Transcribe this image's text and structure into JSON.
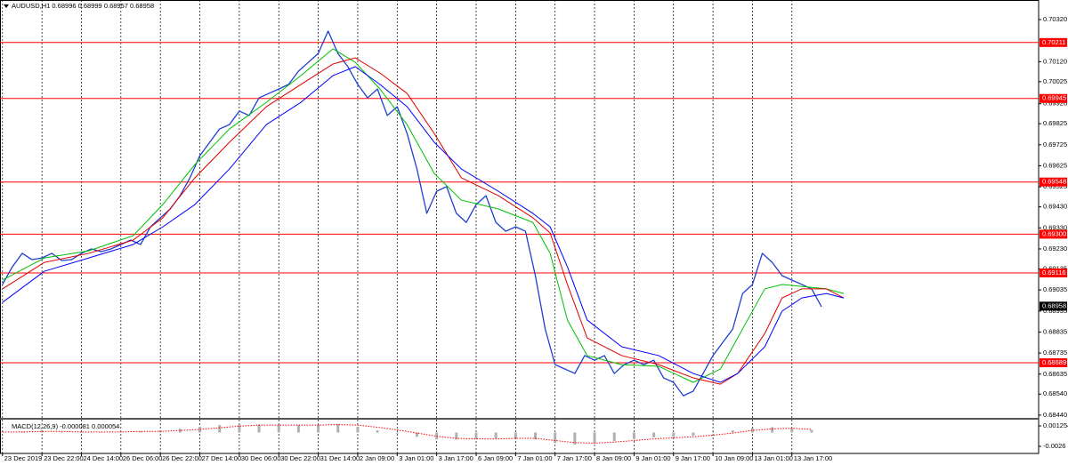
{
  "chart_data": [
    {
      "type": "line",
      "title": "AUDUSD,H1  0.68996 0.68999 0.68957 0.68958",
      "xlim": [
        -1,
        420
      ],
      "ylim": [
        0.68427,
        0.70413
      ],
      "grid_x": true,
      "xticks": [
        {
          "value": 0,
          "label": "23 Dec 2019"
        },
        {
          "value": 16,
          "label": "23 Dec 22:00"
        },
        {
          "value": 32,
          "label": "24 Dec 14:00"
        },
        {
          "value": 48,
          "label": "26 Dec 06:00"
        },
        {
          "value": 64,
          "label": "26 Dec 22:00"
        },
        {
          "value": 80,
          "label": "27 Dec 14:00"
        },
        {
          "value": 96,
          "label": "30 Dec 06:00"
        },
        {
          "value": 112,
          "label": "30 Dec 22:00"
        },
        {
          "value": 128,
          "label": "31 Dec 14:00"
        },
        {
          "value": 144,
          "label": "2 Jan 09:00"
        },
        {
          "value": 160,
          "label": "3 Jan 01:00"
        },
        {
          "value": 176,
          "label": "3 Jan 17:00"
        },
        {
          "value": 192,
          "label": "6 Jan 09:00"
        },
        {
          "value": 208,
          "label": "7 Jan 01:00"
        },
        {
          "value": 224,
          "label": "7 Jan 17:00"
        },
        {
          "value": 240,
          "label": "8 Jan 09:00"
        },
        {
          "value": 256,
          "label": "9 Jan 01:00"
        },
        {
          "value": 272,
          "label": "9 Jan 17:00"
        },
        {
          "value": 288,
          "label": "10 Jan 09:00"
        },
        {
          "value": 304,
          "label": "13 Jan 01:00"
        },
        {
          "value": 320,
          "label": "13 Jan 17:00"
        }
      ],
      "yticks": [
        {
          "value": 0.7032,
          "label": "0.70320"
        },
        {
          "value": 0.7012,
          "label": "0.70120"
        },
        0.70025,
        {
          "value": 0.6992,
          "label": "0.69920"
        },
        0.69825,
        0.69725,
        0.69625,
        0.69525,
        {
          "value": 0.6943,
          "label": "0.69430"
        },
        {
          "value": 0.6933,
          "label": "0.69330"
        },
        {
          "value": 0.6923,
          "label": "0.69230"
        },
        0.69135,
        0.69035,
        0.68935,
        0.68835,
        0.68735,
        0.68635,
        {
          "value": 0.6854,
          "label": "0.68540"
        },
        {
          "value": 0.6844,
          "label": "0.68440"
        }
      ],
      "levels": [
        0.70211,
        0.69945,
        0.69548,
        {
          "value": 0.693,
          "label": "0.69300"
        },
        0.69116,
        0.68689
      ],
      "level_color": "#ff0000",
      "last_price": 0.68958,
      "series": [
        {
          "color": "#1f3fd0",
          "x": [
            0,
            4,
            8,
            12,
            16,
            20,
            24,
            28,
            32,
            36,
            40,
            44,
            48,
            52,
            56,
            60,
            64,
            68,
            72,
            76,
            80,
            84,
            88,
            92,
            96,
            100,
            104,
            108,
            112,
            116,
            120,
            124,
            128,
            132,
            136,
            140,
            144,
            148,
            152,
            156,
            160,
            164,
            168,
            172,
            176,
            180,
            184,
            188,
            192,
            196,
            200,
            204,
            208,
            212,
            216,
            220,
            224,
            228,
            232,
            236,
            240,
            244,
            248,
            252,
            256,
            260,
            264,
            268,
            272,
            276,
            280,
            284,
            288,
            292,
            296,
            300,
            304,
            308,
            312,
            316,
            320,
            324,
            328,
            332
          ],
          "values": [
            0.69061,
            0.69145,
            0.69209,
            0.69179,
            0.69187,
            0.69209,
            0.69175,
            0.69179,
            0.69209,
            0.6923,
            0.69217,
            0.6923,
            0.69251,
            0.69272,
            0.69251,
            0.69335,
            0.69378,
            0.6942,
            0.69483,
            0.69568,
            0.69673,
            0.69737,
            0.698,
            0.69821,
            0.69885,
            0.69864,
            0.69948,
            0.69969,
            0.6999,
            0.70012,
            0.70075,
            0.70117,
            0.70159,
            0.70265,
            0.70159,
            0.70096,
            0.70012,
            0.69948,
            0.6999,
            0.69864,
            0.69906,
            0.69779,
            0.6961,
            0.69399,
            0.69504,
            0.69526,
            0.69399,
            0.69356,
            0.69441,
            0.69483,
            0.69356,
            0.69314,
            0.69335,
            0.69314,
            0.69103,
            0.68849,
            0.6868,
            0.68659,
            0.68638,
            0.68723,
            0.68701,
            0.68723,
            0.68638,
            0.6868,
            0.68701,
            0.6868,
            0.68701,
            0.68617,
            0.68596,
            0.68532,
            0.68554,
            0.68638,
            0.68723,
            0.68786,
            0.68849,
            0.69018,
            0.69061,
            0.69209,
            0.69166,
            0.69103,
            0.69082,
            0.69061,
            0.6904,
            0.68955
          ]
        },
        {
          "color": "#00c000",
          "x": [
            0,
            17,
            35,
            53,
            65,
            78,
            92,
            107,
            121,
            134,
            143,
            153,
            164,
            175,
            186,
            201,
            215,
            222,
            229,
            237,
            251,
            266,
            280,
            291,
            298,
            309,
            316,
            324,
            334,
            341
          ],
          "values": [
            0.69082,
            0.69187,
            0.69221,
            0.69293,
            0.69441,
            0.69631,
            0.698,
            0.69927,
            0.70054,
            0.70181,
            0.70117,
            0.6999,
            0.69821,
            0.69589,
            0.69462,
            0.6942,
            0.69356,
            0.69209,
            0.68892,
            0.68723,
            0.6868,
            0.68672,
            0.68596,
            0.68659,
            0.68807,
            0.6904,
            0.69061,
            0.69052,
            0.6904,
            0.69018
          ]
        },
        {
          "color": "#e00000",
          "x": [
            0,
            17,
            35,
            53,
            65,
            78,
            92,
            107,
            121,
            134,
            143,
            153,
            164,
            175,
            186,
            201,
            215,
            222,
            229,
            237,
            251,
            266,
            280,
            291,
            298,
            309,
            316,
            324,
            334,
            341
          ],
          "values": [
            0.6904,
            0.69166,
            0.69209,
            0.69272,
            0.69378,
            0.69568,
            0.69737,
            0.69906,
            0.70012,
            0.70109,
            0.70138,
            0.70066,
            0.69969,
            0.69779,
            0.69568,
            0.69483,
            0.69378,
            0.69306,
            0.69061,
            0.68807,
            0.68723,
            0.6868,
            0.68617,
            0.68587,
            0.68638,
            0.68828,
            0.68997,
            0.6904,
            0.6904,
            0.68997
          ]
        },
        {
          "color": "#0000ff",
          "x": [
            0,
            17,
            35,
            53,
            65,
            78,
            92,
            107,
            121,
            134,
            143,
            153,
            164,
            175,
            186,
            201,
            215,
            222,
            229,
            237,
            251,
            266,
            280,
            291,
            298,
            309,
            316,
            324,
            334,
            341
          ],
          "values": [
            0.68976,
            0.69124,
            0.69187,
            0.69251,
            0.69335,
            0.69441,
            0.6961,
            0.69821,
            0.69927,
            0.70054,
            0.70096,
            0.70012,
            0.69906,
            0.69737,
            0.6961,
            0.69504,
            0.69399,
            0.69335,
            0.69145,
            0.68892,
            0.68765,
            0.68723,
            0.68638,
            0.68596,
            0.68638,
            0.68765,
            0.68934,
            0.68997,
            0.69018,
            0.68997
          ]
        }
      ]
    },
    {
      "type": "line",
      "title": "MACD(12,26,9) -0.000081 0.000054",
      "xlim": [
        -1,
        420
      ],
      "ylim": [
        -0.00394,
        0.00226
      ],
      "yticks": [
        0.001254,
        -0.0026
      ],
      "series": [
        {
          "style": "histogram",
          "color": "#b0b0b0",
          "x": [
            0,
            8,
            16,
            24,
            32,
            40,
            48,
            56,
            64,
            72,
            80,
            88,
            96,
            104,
            112,
            120,
            128,
            136,
            144,
            152,
            160,
            168,
            176,
            184,
            192,
            200,
            208,
            216,
            224,
            232,
            240,
            248,
            256,
            264,
            272,
            280,
            288,
            296,
            304,
            312,
            320,
            328
          ],
          "values": [
            0.0001,
            0.0002,
            0.0002,
            0.0001,
            0.0001,
            0.0001,
            0.0002,
            0.0002,
            0.0004,
            0.0007,
            0.0011,
            0.0014,
            0.0015,
            0.0015,
            0.0014,
            0.0014,
            0.0015,
            0.0016,
            0.0011,
            0.0004,
            -0.0002,
            -0.0008,
            -0.0013,
            -0.0013,
            -0.0012,
            -0.0011,
            -0.001,
            -0.0013,
            -0.002,
            -0.0023,
            -0.002,
            -0.0016,
            -0.0012,
            -0.0009,
            -0.0008,
            -0.0006,
            -0.0001,
            0.0004,
            0.0008,
            0.001,
            0.0008,
            0.0005
          ]
        },
        {
          "style": "dotted",
          "color": "#ff0000",
          "x": [
            0,
            8,
            16,
            24,
            32,
            40,
            48,
            56,
            64,
            72,
            80,
            88,
            96,
            104,
            112,
            120,
            128,
            136,
            144,
            152,
            160,
            168,
            176,
            184,
            192,
            200,
            208,
            216,
            224,
            232,
            240,
            248,
            256,
            264,
            272,
            280,
            288,
            296,
            304,
            312,
            320,
            328
          ],
          "values": [
            0.0001,
            0.0001,
            0.0002,
            0.0002,
            0.0001,
            0.0001,
            0.0001,
            0.0002,
            0.0002,
            0.0004,
            0.0006,
            0.0009,
            0.0012,
            0.0014,
            0.0014,
            0.0014,
            0.0014,
            0.0015,
            0.0014,
            0.001,
            0.0005,
            -0.0001,
            -0.0007,
            -0.0011,
            -0.0012,
            -0.0012,
            -0.0011,
            -0.0011,
            -0.0015,
            -0.0019,
            -0.002,
            -0.0018,
            -0.0015,
            -0.0012,
            -0.001,
            -0.0008,
            -0.0005,
            -0.0001,
            0.0004,
            0.0007,
            0.0008,
            0.0006
          ]
        }
      ]
    }
  ]
}
